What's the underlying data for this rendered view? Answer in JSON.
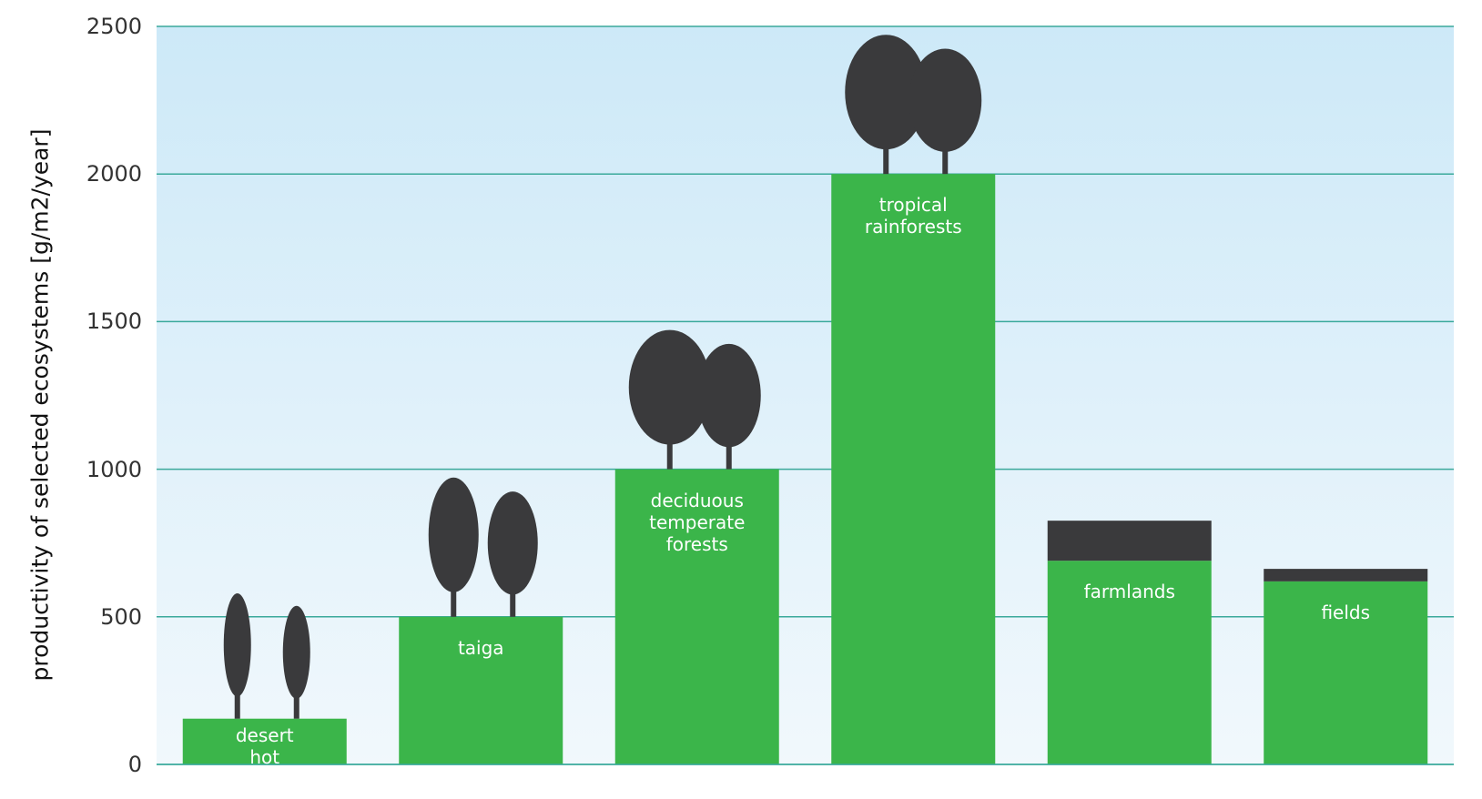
{
  "chart_data": {
    "type": "bar",
    "y_label": "productivity of selected ecosystems [g/m2/year]",
    "categories": [
      "desert\nhot",
      "taiga",
      "deciduous\ntemperate\nforests",
      "tropical\nrainforests",
      "farmlands",
      "fields"
    ],
    "values": [
      155,
      500,
      1000,
      2000,
      690,
      620
    ],
    "color": "#3bb54a",
    "ylim": [
      0,
      2500
    ],
    "yticks": [
      0,
      500,
      1000,
      1500,
      2000,
      2500
    ],
    "grid": true
  }
}
